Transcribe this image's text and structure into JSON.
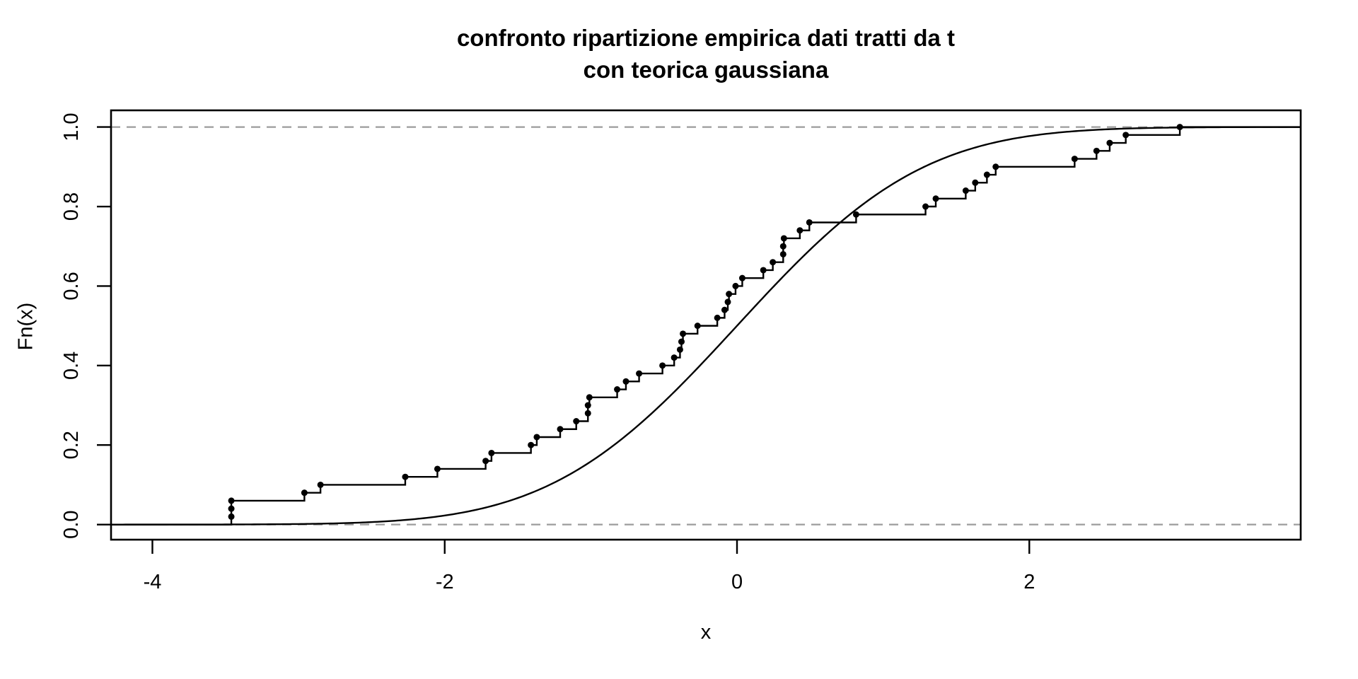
{
  "title": {
    "line1": "confronto ripartizione empirica dati tratti da t",
    "line2": "con teorica gaussiana"
  },
  "labels": {
    "x": "x",
    "y": "Fn(x)"
  },
  "colors": {
    "foreground": "#000000",
    "reference_dashed": "#9c9c9c",
    "background": "#ffffff"
  },
  "chart_data": {
    "type": "line",
    "title": "confronto ripartizione empirica dati tratti da t con teorica gaussiana",
    "xlabel": "x",
    "ylabel": "Fn(x)",
    "xlim": [
      -4.283,
      3.857
    ],
    "ylim": [
      -0.038,
      1.042
    ],
    "grid": false,
    "legend": "none",
    "x_ticks": [
      -4,
      -2,
      0,
      2
    ],
    "x_tick_labels": [
      "-4",
      "-2",
      "0",
      "2"
    ],
    "y_ticks": [
      0.0,
      0.2,
      0.4,
      0.6,
      0.8,
      1.0
    ],
    "y_tick_labels": [
      "0.0",
      "0.2",
      "0.4",
      "0.6",
      "0.8",
      "1.0"
    ],
    "reference_lines_y": [
      0.0,
      1.0
    ],
    "series": [
      {
        "name": "empirical-cdf",
        "style": "step-with-points",
        "color": "#000000",
        "points": [
          [
            -3.46,
            0.02
          ],
          [
            -3.46,
            0.04
          ],
          [
            -3.46,
            0.06
          ],
          [
            -2.96,
            0.08
          ],
          [
            -2.85,
            0.1
          ],
          [
            -2.27,
            0.12
          ],
          [
            -2.05,
            0.14
          ],
          [
            -1.72,
            0.16
          ],
          [
            -1.68,
            0.18
          ],
          [
            -1.41,
            0.2
          ],
          [
            -1.37,
            0.22
          ],
          [
            -1.21,
            0.24
          ],
          [
            -1.1,
            0.26
          ],
          [
            -1.02,
            0.28
          ],
          [
            -1.02,
            0.3
          ],
          [
            -1.01,
            0.32
          ],
          [
            -0.82,
            0.34
          ],
          [
            -0.76,
            0.36
          ],
          [
            -0.67,
            0.38
          ],
          [
            -0.51,
            0.4
          ],
          [
            -0.43,
            0.42
          ],
          [
            -0.39,
            0.44
          ],
          [
            -0.38,
            0.46
          ],
          [
            -0.37,
            0.48
          ],
          [
            -0.27,
            0.5
          ],
          [
            -0.135,
            0.52
          ],
          [
            -0.085,
            0.54
          ],
          [
            -0.063,
            0.56
          ],
          [
            -0.055,
            0.58
          ],
          [
            -0.01,
            0.6
          ],
          [
            0.036,
            0.62
          ],
          [
            0.18,
            0.64
          ],
          [
            0.245,
            0.66
          ],
          [
            0.316,
            0.68
          ],
          [
            0.316,
            0.7
          ],
          [
            0.321,
            0.72
          ],
          [
            0.43,
            0.74
          ],
          [
            0.495,
            0.76
          ],
          [
            0.815,
            0.78
          ],
          [
            1.29,
            0.8
          ],
          [
            1.36,
            0.82
          ],
          [
            1.565,
            0.84
          ],
          [
            1.63,
            0.86
          ],
          [
            1.71,
            0.88
          ],
          [
            1.77,
            0.9
          ],
          [
            2.31,
            0.92
          ],
          [
            2.46,
            0.94
          ],
          [
            2.55,
            0.96
          ],
          [
            2.66,
            0.98
          ],
          [
            3.03,
            1.0
          ]
        ]
      },
      {
        "name": "theoretical-gaussian-cdf",
        "style": "smooth-curve",
        "color": "#000000",
        "distribution": "normal",
        "mean": 0,
        "sd": 1
      }
    ]
  }
}
